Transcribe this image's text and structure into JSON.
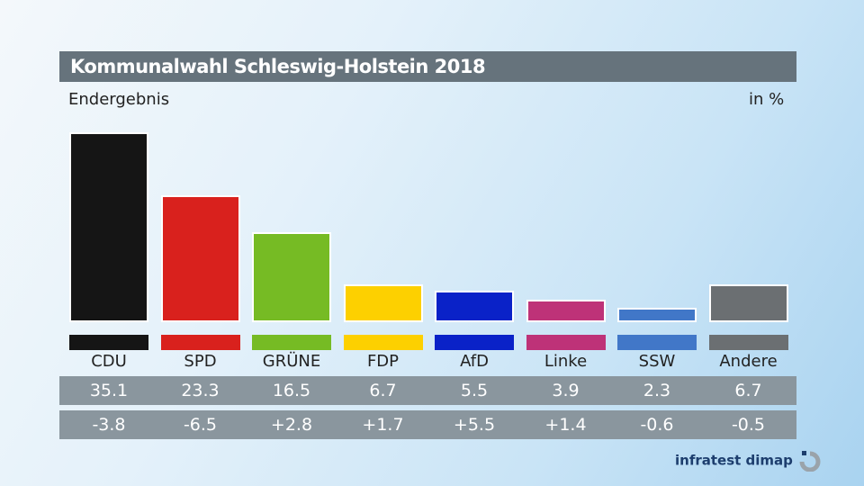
{
  "chart_data": {
    "type": "bar",
    "title": "Kommunalwahl Schleswig-Holstein 2018",
    "subtitle": "Endergebnis",
    "unit": "in %",
    "categories": [
      "CDU",
      "SPD",
      "GRÜNE",
      "FDP",
      "AfD",
      "Linke",
      "SSW",
      "Andere"
    ],
    "values": [
      "35.1",
      "23.3",
      "16.5",
      "6.7",
      "5.5",
      "3.9",
      "2.3",
      "6.7"
    ],
    "changes": [
      "-3.8",
      "-6.5",
      "+2.8",
      "+1.7",
      "+5.5",
      "+1.4",
      "-0.6",
      "-0.5"
    ],
    "colors": [
      "#151515",
      "#d9211d",
      "#76bb24",
      "#fdd000",
      "#0a22c8",
      "#be3278",
      "#4177c8",
      "#6b6f72"
    ],
    "ylim": [
      0,
      35.1
    ]
  },
  "source": "infratest dimap"
}
